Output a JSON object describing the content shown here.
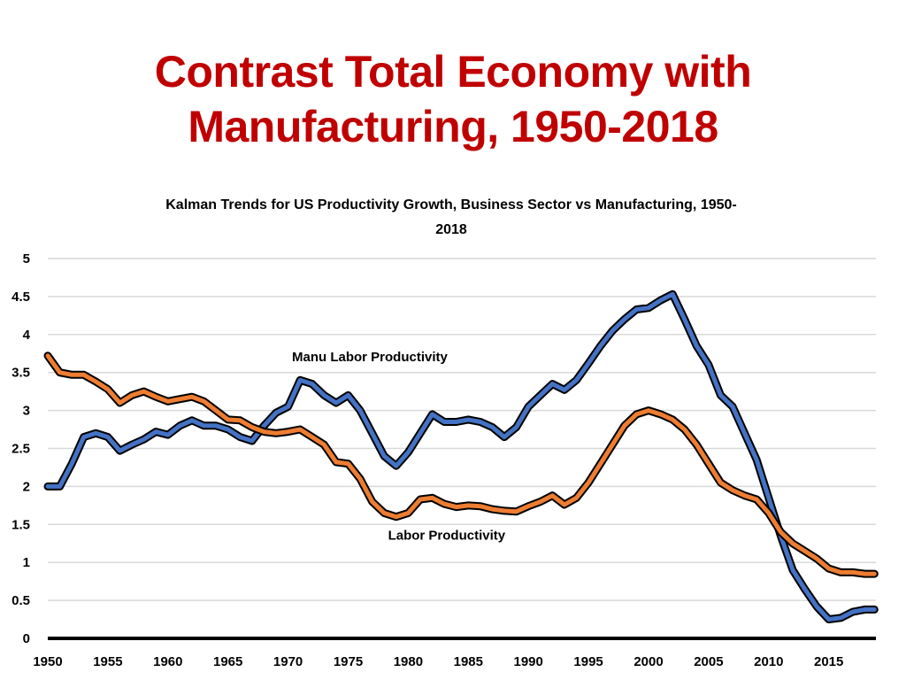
{
  "slide": {
    "title_line1": "Contrast Total Economy with",
    "title_line2": "Manufacturing, 1950-2018",
    "title_color": "#c00000"
  },
  "chart_data": {
    "type": "line",
    "title": "Kalman Trends for US Productivity Growth,  Business Sector vs Manufacturing, 1950-2018",
    "title_line1": "Kalman Trends for US Productivity Growth,  Business Sector vs Manufacturing, 1950-",
    "title_line2": "2018",
    "xlabel": "",
    "ylabel": "",
    "xlim": [
      1950,
      2018.8
    ],
    "ylim": [
      0,
      5
    ],
    "grid": true,
    "legend": "none (inline annotations)",
    "x_ticks": [
      "1950",
      "1955",
      "1960",
      "1965",
      "1970",
      "1975",
      "1980",
      "1985",
      "1990",
      "1995",
      "2000",
      "2005",
      "2010",
      "2015"
    ],
    "y_ticks": [
      "0",
      "0.5",
      "1",
      "1.5",
      "2",
      "2.5",
      "3",
      "3.5",
      "4",
      "4.5",
      "5"
    ],
    "x": [
      1950,
      1951,
      1952,
      1953,
      1954,
      1955,
      1956,
      1957,
      1958,
      1959,
      1960,
      1961,
      1962,
      1963,
      1964,
      1965,
      1966,
      1967,
      1968,
      1969,
      1970,
      1971,
      1972,
      1973,
      1974,
      1975,
      1976,
      1977,
      1978,
      1979,
      1980,
      1981,
      1982,
      1983,
      1984,
      1985,
      1986,
      1987,
      1988,
      1989,
      1990,
      1991,
      1992,
      1993,
      1994,
      1995,
      1996,
      1997,
      1998,
      1999,
      2000,
      2001,
      2002,
      2003,
      2004,
      2005,
      2006,
      2007,
      2008,
      2009,
      2010,
      2011,
      2012,
      2013,
      2014,
      2015,
      2016,
      2017,
      2018,
      2018.8
    ],
    "series": [
      {
        "name": "Manu Labor Productivity",
        "color": "#4472c4",
        "values": [
          2.0,
          2.0,
          2.3,
          2.65,
          2.7,
          2.65,
          2.47,
          2.55,
          2.62,
          2.72,
          2.68,
          2.8,
          2.87,
          2.8,
          2.8,
          2.75,
          2.65,
          2.6,
          2.8,
          2.97,
          3.05,
          3.4,
          3.35,
          3.2,
          3.1,
          3.2,
          3.0,
          2.7,
          2.4,
          2.27,
          2.45,
          2.7,
          2.95,
          2.85,
          2.85,
          2.88,
          2.85,
          2.78,
          2.65,
          2.78,
          3.05,
          3.2,
          3.35,
          3.27,
          3.4,
          3.62,
          3.85,
          4.05,
          4.2,
          4.33,
          4.35,
          4.45,
          4.53,
          4.2,
          3.85,
          3.6,
          3.2,
          3.05,
          2.7,
          2.35,
          1.85,
          1.35,
          0.9,
          0.65,
          0.42,
          0.25,
          0.27,
          0.35,
          0.38,
          0.38
        ]
      },
      {
        "name": "Labor Productivity",
        "color": "#ed7d31",
        "values": [
          3.72,
          3.5,
          3.47,
          3.47,
          3.38,
          3.28,
          3.1,
          3.2,
          3.25,
          3.18,
          3.12,
          3.15,
          3.18,
          3.12,
          3.0,
          2.88,
          2.87,
          2.78,
          2.72,
          2.7,
          2.72,
          2.75,
          2.65,
          2.55,
          2.32,
          2.3,
          2.1,
          1.8,
          1.65,
          1.6,
          1.65,
          1.83,
          1.85,
          1.77,
          1.73,
          1.75,
          1.74,
          1.7,
          1.68,
          1.67,
          1.74,
          1.8,
          1.88,
          1.76,
          1.85,
          2.05,
          2.3,
          2.55,
          2.8,
          2.95,
          3.0,
          2.95,
          2.88,
          2.75,
          2.55,
          2.3,
          2.05,
          1.95,
          1.88,
          1.83,
          1.65,
          1.4,
          1.25,
          1.15,
          1.05,
          0.92,
          0.87,
          0.87,
          0.85,
          0.85
        ]
      }
    ],
    "annotations": [
      {
        "text": "Manu Labor Productivity",
        "x": 1976.8,
        "y": 3.65
      },
      {
        "text": "Labor Productivity",
        "x": 1983.2,
        "y": 1.3
      }
    ]
  }
}
